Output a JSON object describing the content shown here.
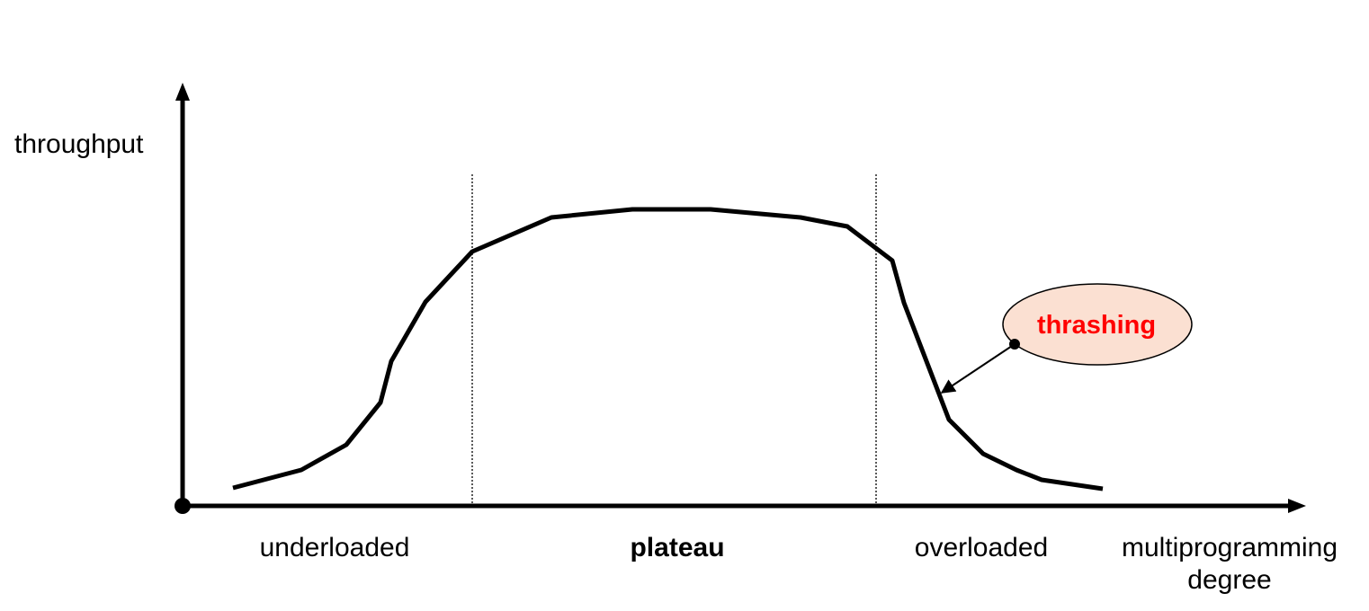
{
  "y_axis": {
    "label": "throughput"
  },
  "x_axis": {
    "label_line1": "multiprogramming",
    "label_line2": "degree"
  },
  "regions": {
    "underloaded": "underloaded",
    "plateau": "plateau",
    "overloaded": "overloaded"
  },
  "callout": {
    "text": "thrashing",
    "text_color": "#ff0000",
    "fill_color": "#fbe0d2"
  },
  "colors": {
    "curve": "#000000",
    "axes": "#000000",
    "divider": "#000000"
  }
}
